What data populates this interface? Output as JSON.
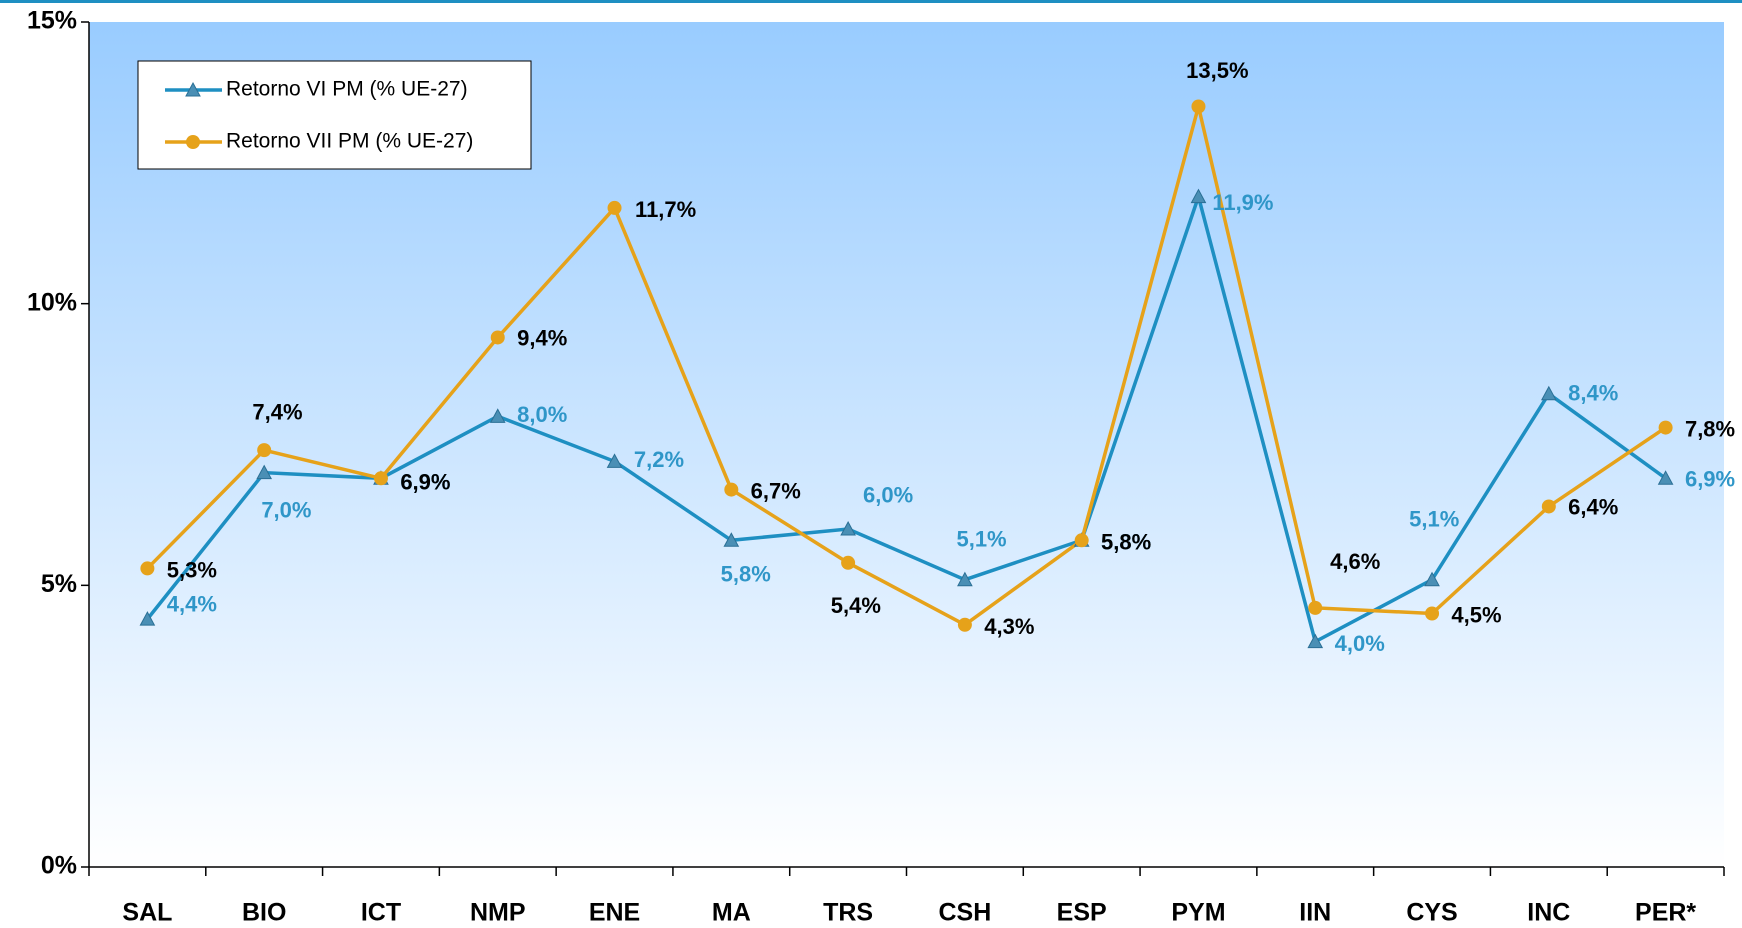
{
  "chart_data": {
    "type": "line",
    "categories": [
      "SAL",
      "BIO",
      "ICT",
      "NMP",
      "ENE",
      "MA",
      "TRS",
      "CSH",
      "ESP",
      "PYM",
      "IIN",
      "CYS",
      "INC",
      "PER*"
    ],
    "series": [
      {
        "name": "Retorno VI PM (% UE-27)",
        "color": "#1e8fc2",
        "label_color": "#2f96c8",
        "marker": "triangle",
        "values": [
          4.4,
          7.0,
          6.9,
          8.0,
          7.2,
          5.8,
          6.0,
          5.1,
          5.8,
          11.9,
          4.0,
          5.1,
          8.4,
          6.9
        ],
        "value_labels": [
          "4,4%",
          "7,0%",
          "6,9%",
          "8,0%",
          "7,2%",
          "5,8%",
          "6,0%",
          "5,1%",
          "5,8%",
          "11,9%",
          "4,0%",
          "5,1%",
          "8,4%",
          "6,9%"
        ]
      },
      {
        "name": "Retorno VII PM (% UE-27)",
        "color": "#e6a21a",
        "label_color": "#000000",
        "marker": "circle",
        "values": [
          5.3,
          7.4,
          6.9,
          9.4,
          11.7,
          6.7,
          5.4,
          4.3,
          5.8,
          13.5,
          4.6,
          4.5,
          6.4,
          7.8
        ],
        "value_labels": [
          "5,3%",
          "7,4%",
          "6,9%",
          "9,4%",
          "11,7%",
          "6,7%",
          "5,4%",
          "4,3%",
          "5,8%",
          "13,5%",
          "4,6%",
          "4,5%",
          "6,4%",
          "7,8%"
        ]
      }
    ],
    "ylim": [
      0,
      15
    ],
    "yticks": [
      {
        "value": 0,
        "label": "0%"
      },
      {
        "value": 5,
        "label": "5%"
      },
      {
        "value": 10,
        "label": "10%"
      },
      {
        "value": 15,
        "label": "15%"
      }
    ],
    "grid": false,
    "legend": "upper left"
  }
}
